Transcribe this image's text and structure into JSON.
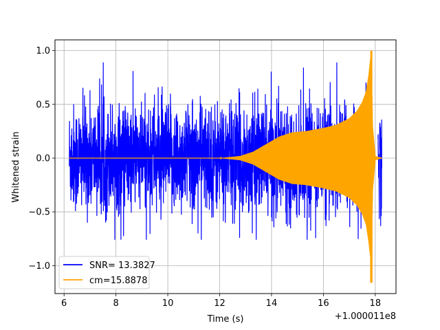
{
  "chart_data": {
    "type": "line",
    "title": "",
    "xlabel": "Time (s)",
    "ylabel": "Whitened strain",
    "x_offset_label": "+1.000011e8",
    "xlim": [
      5.65,
      18.8
    ],
    "ylim": [
      -1.26,
      1.1
    ],
    "x_ticks": [
      6,
      8,
      10,
      12,
      14,
      16,
      18
    ],
    "y_ticks": [
      -1.0,
      -0.5,
      0.0,
      0.5,
      1.0
    ],
    "x_tick_labels": [
      "6",
      "8",
      "10",
      "12",
      "14",
      "16",
      "18"
    ],
    "y_tick_labels": [
      "−1.0",
      "−0.5",
      "0.0",
      "0.5",
      "1.0"
    ],
    "grid": true,
    "legend_position": "lower-left",
    "series": [
      {
        "name": "SNR= 13.3827",
        "color": "#0000ff",
        "description_of_shape": "noise",
        "x_start": 6.2,
        "x_end": 18.25,
        "gap": [
          17.85,
          18.1
        ],
        "typical_amplitude": 0.45,
        "max": 0.89,
        "min": -0.76
      },
      {
        "name": "cm=15.8878",
        "color": "#ffa500",
        "x_start": 6.2,
        "x_end": 18.25,
        "envelope": [
          [
            6.2,
            0.0
          ],
          [
            12.0,
            0.0
          ],
          [
            12.8,
            0.02
          ],
          [
            13.3,
            0.06
          ],
          [
            13.8,
            0.13
          ],
          [
            14.3,
            0.2
          ],
          [
            14.8,
            0.24
          ],
          [
            15.3,
            0.25
          ],
          [
            16.0,
            0.28
          ],
          [
            16.5,
            0.31
          ],
          [
            17.0,
            0.37
          ],
          [
            17.3,
            0.44
          ],
          [
            17.5,
            0.52
          ],
          [
            17.65,
            0.62
          ],
          [
            17.75,
            0.78
          ],
          [
            17.85,
            1.0
          ],
          [
            17.9,
            0.3
          ],
          [
            18.0,
            0.02
          ],
          [
            18.25,
            0.0
          ]
        ],
        "max": 1.0,
        "min": -1.16
      }
    ]
  }
}
